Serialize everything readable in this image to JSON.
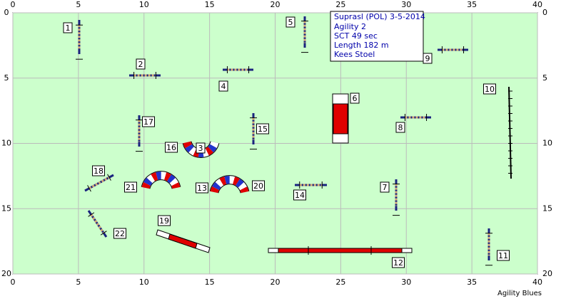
{
  "course": {
    "x_ticks": [
      0,
      5,
      10,
      15,
      20,
      25,
      30,
      35,
      40
    ],
    "y_ticks": [
      0,
      5,
      10,
      15,
      20
    ]
  },
  "info": {
    "event": "Suprasl (POL) 3-5-2014",
    "class": "Agility 2",
    "sct": "SCT 49 sec",
    "length": "Length 182 m",
    "judge": "Kees Stoel"
  },
  "obstacles": [
    "1",
    "2",
    "3",
    "4",
    "5",
    "6",
    "7",
    "8",
    "9",
    "10",
    "11",
    "12",
    "13",
    "14",
    "15",
    "16",
    "17",
    "18",
    "19",
    "20",
    "21",
    "22"
  ],
  "footer": "Agility Blues"
}
